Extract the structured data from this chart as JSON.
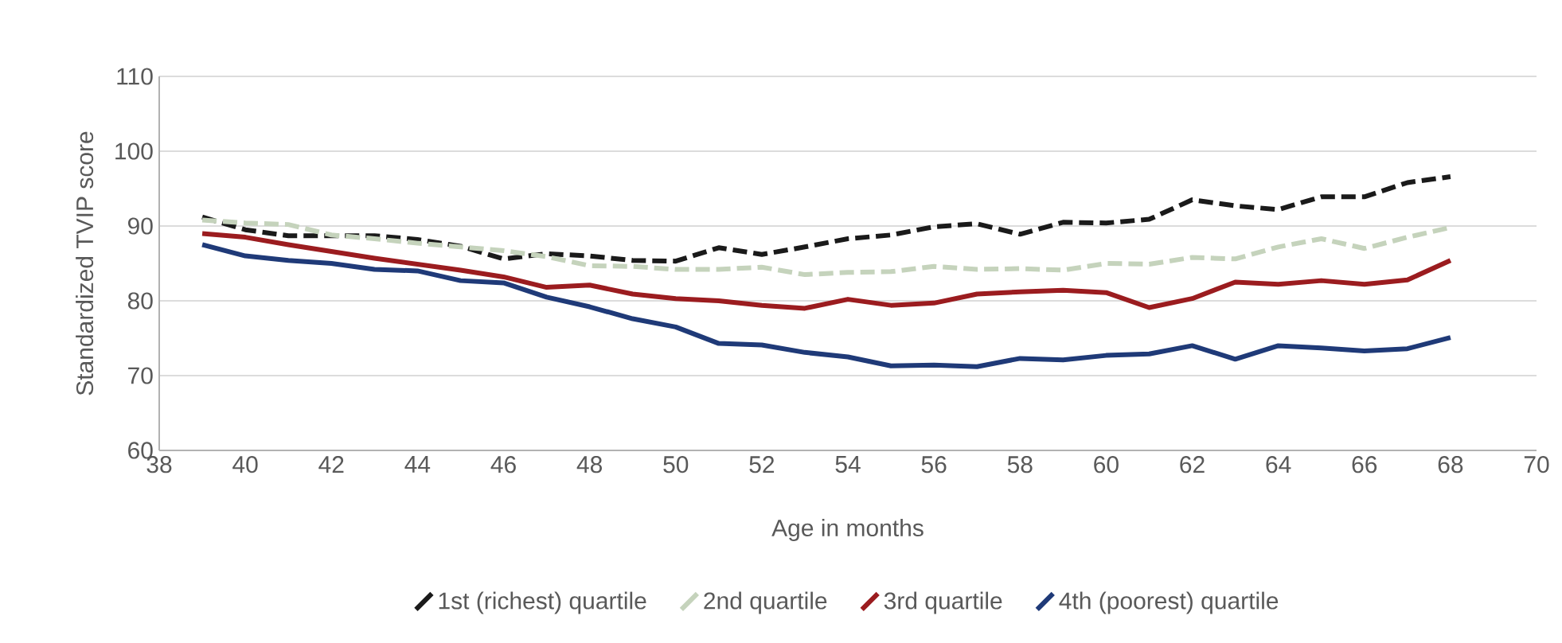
{
  "chart_data": {
    "type": "line",
    "xlabel": "Age in months",
    "ylabel": "Standardized TVIP score",
    "x": [
      39,
      40,
      41,
      42,
      43,
      44,
      45,
      46,
      47,
      48,
      49,
      50,
      51,
      52,
      53,
      54,
      55,
      56,
      57,
      58,
      59,
      60,
      61,
      62,
      63,
      64,
      65,
      66,
      67,
      68
    ],
    "series": [
      {
        "name": "1st (richest) quartile",
        "color": "#1a1a1a",
        "line_style": "dashed",
        "values": [
          91.2,
          89.5,
          88.7,
          88.7,
          88.7,
          88.2,
          87.3,
          85.6,
          86.3,
          86.0,
          85.4,
          85.3,
          87.1,
          86.2,
          87.2,
          88.3,
          88.8,
          89.9,
          90.3,
          88.9,
          90.5,
          90.4,
          90.9,
          93.5,
          92.7,
          92.2,
          93.9,
          93.9,
          95.8,
          96.6
        ]
      },
      {
        "name": "2nd quartile",
        "color": "#c5d3bc",
        "line_style": "dashed",
        "values": [
          90.8,
          90.4,
          90.2,
          88.8,
          88.3,
          87.7,
          87.2,
          86.7,
          85.9,
          84.7,
          84.6,
          84.2,
          84.2,
          84.5,
          83.5,
          83.8,
          83.9,
          84.6,
          84.2,
          84.3,
          84.1,
          85.0,
          84.9,
          85.8,
          85.6,
          87.2,
          88.3,
          87.0,
          88.5,
          89.8
        ]
      },
      {
        "name": "3rd quartile",
        "color": "#9b1c1f",
        "line_style": "solid",
        "values": [
          89.0,
          88.5,
          87.5,
          86.6,
          85.7,
          84.9,
          84.1,
          83.2,
          81.8,
          82.1,
          80.9,
          80.3,
          80.0,
          79.4,
          79.0,
          80.2,
          79.4,
          79.7,
          80.9,
          81.2,
          81.4,
          81.1,
          79.1,
          80.3,
          82.5,
          82.2,
          82.7,
          82.2,
          82.8,
          85.4
        ]
      },
      {
        "name": "4th (poorest) quartile",
        "color": "#1f3a78",
        "line_style": "solid",
        "values": [
          87.5,
          86.0,
          85.4,
          85.0,
          84.2,
          84.0,
          82.7,
          82.4,
          80.5,
          79.2,
          77.6,
          76.5,
          74.3,
          74.1,
          73.1,
          72.5,
          71.3,
          71.4,
          71.2,
          72.3,
          72.1,
          72.7,
          72.9,
          74.0,
          72.2,
          74.0,
          73.7,
          73.3,
          73.6,
          75.1
        ]
      }
    ],
    "xlim": [
      38,
      70
    ],
    "xticks": [
      38,
      40,
      42,
      44,
      46,
      48,
      50,
      52,
      54,
      56,
      58,
      60,
      62,
      64,
      66,
      68,
      70
    ],
    "ylim": [
      60,
      110
    ],
    "yticks": [
      60,
      70,
      80,
      90,
      100,
      110
    ],
    "grid": "y",
    "legend": "bottom"
  }
}
